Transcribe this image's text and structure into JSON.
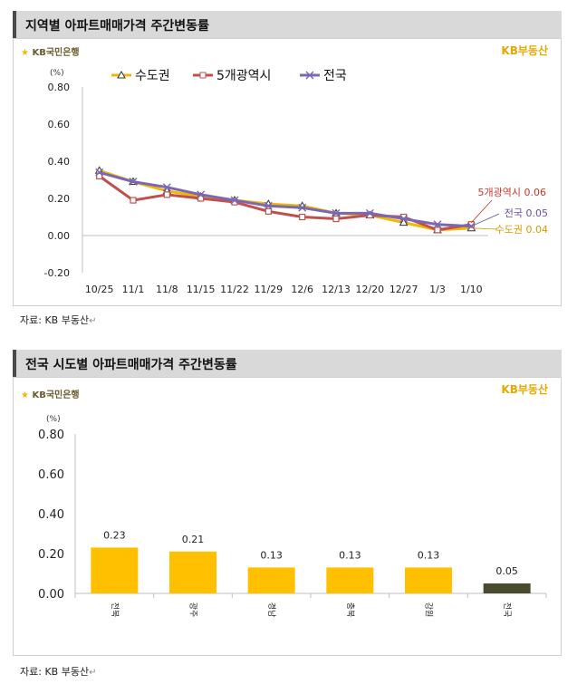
{
  "section1": {
    "title": "지역별 아파트매매가격 주간변동률",
    "bank_logo": "KB국민은행",
    "brand": "KB부동산",
    "source": "자료: KB 부동산"
  },
  "section2": {
    "title": "전국 시도별 아파트매매가격 주간변동률",
    "bank_logo": "KB국민은행",
    "brand": "KB부동산",
    "source": "자료: KB 부동산"
  },
  "chart_data": [
    {
      "type": "line",
      "unit_label": "(%)",
      "categories": [
        "10/25",
        "11/1",
        "11/8",
        "11/15",
        "11/22",
        "11/29",
        "12/6",
        "12/13",
        "12/20",
        "12/27",
        "1/3",
        "1/10"
      ],
      "ylim": [
        -0.2,
        0.8
      ],
      "yticks": [
        "-0.20",
        "0.00",
        "0.20",
        "0.40",
        "0.60",
        "0.80"
      ],
      "series": [
        {
          "name": "수도권",
          "color": "#f2b705",
          "marker": "triangle",
          "values": [
            0.35,
            0.29,
            0.24,
            0.21,
            0.19,
            0.17,
            0.16,
            0.12,
            0.11,
            0.07,
            0.03,
            0.04
          ]
        },
        {
          "name": "5개광역시",
          "color": "#c0504d",
          "marker": "square",
          "values": [
            0.32,
            0.19,
            0.22,
            0.2,
            0.18,
            0.13,
            0.1,
            0.09,
            0.11,
            0.1,
            0.03,
            0.06
          ]
        },
        {
          "name": "전국",
          "color": "#7b68b0",
          "marker": "x",
          "values": [
            0.34,
            0.29,
            0.26,
            0.22,
            0.19,
            0.16,
            0.15,
            0.12,
            0.12,
            0.09,
            0.06,
            0.05
          ]
        }
      ],
      "annotations": [
        {
          "text": "5개광역시 0.06",
          "color": "#c0392b"
        },
        {
          "text": "전국 0.05",
          "color": "#6a4fa0"
        },
        {
          "text": "수도권 0.04",
          "color": "#d49a00"
        }
      ]
    },
    {
      "type": "bar",
      "unit_label": "(%)",
      "categories": [
        "전북",
        "광주",
        "경남",
        "충북",
        "강원",
        "전국"
      ],
      "values": [
        0.23,
        0.21,
        0.13,
        0.13,
        0.13,
        0.05
      ],
      "value_labels": [
        "0.23",
        "0.21",
        "0.13",
        "0.13",
        "0.13",
        "0.05"
      ],
      "colors": [
        "#ffc000",
        "#ffc000",
        "#ffc000",
        "#ffc000",
        "#ffc000",
        "#4a4a2e"
      ],
      "ylim": [
        0.0,
        0.8
      ],
      "yticks": [
        "0.00",
        "0.20",
        "0.40",
        "0.60",
        "0.80"
      ]
    }
  ]
}
